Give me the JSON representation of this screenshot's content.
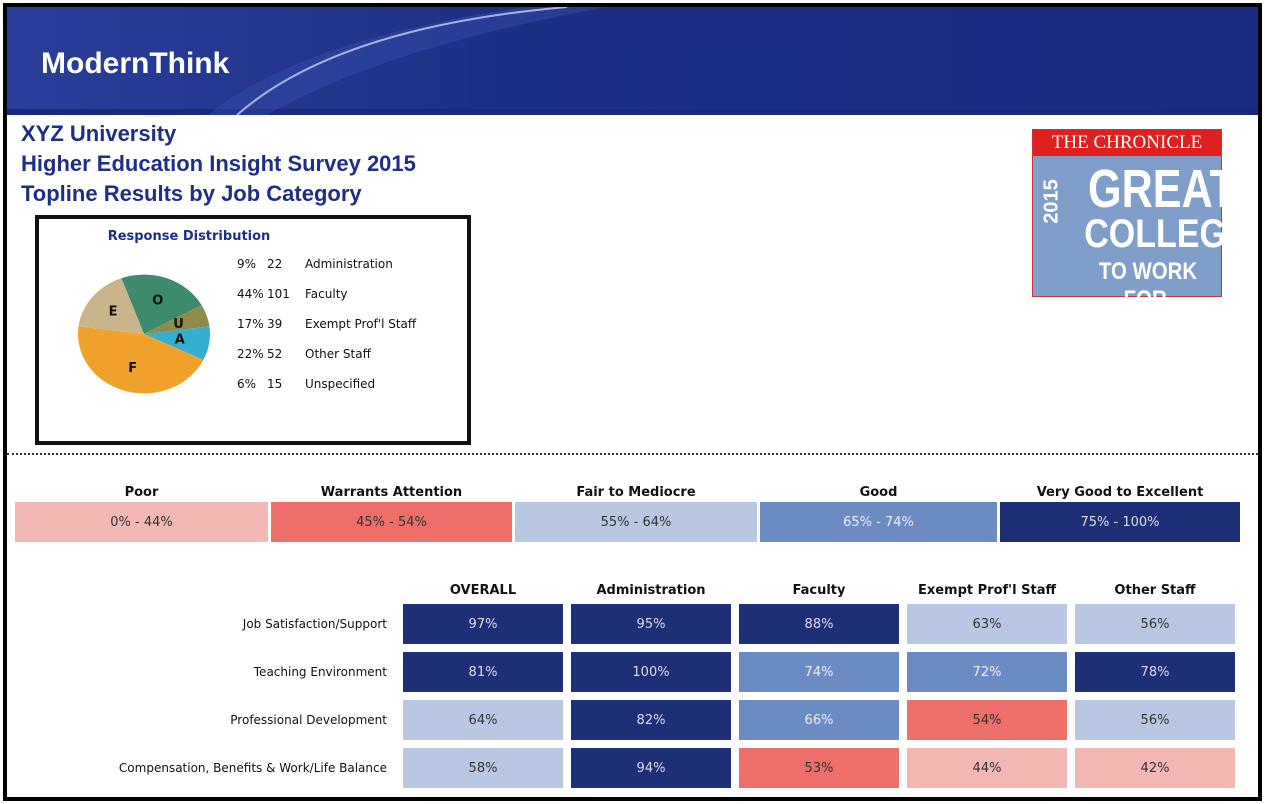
{
  "header": {
    "logo": "ModernThink",
    "title_lines": [
      "XYZ University",
      "Higher Education Insight Survey 2015",
      "Topline Results by Job Category"
    ]
  },
  "badge": {
    "top": "THE CHRONICLE",
    "year": "2015",
    "lines": [
      "GREAT",
      "COLLEGES",
      "TO WORK FOR."
    ]
  },
  "response_distribution": {
    "title": "Response Distribution",
    "labels": [
      "Administration",
      "Faculty",
      "Exempt Prof'l Staff",
      "Other Staff",
      "Unspecified"
    ],
    "letters": [
      "A",
      "F",
      "E",
      "O",
      "U"
    ],
    "values": [
      9,
      44,
      17,
      22,
      6
    ],
    "value_labels": [
      "9%",
      "44%",
      "17%",
      "22%",
      "6%"
    ],
    "counts": [
      22,
      101,
      39,
      52,
      15
    ],
    "colors": [
      "#35aed2",
      "#f0a22c",
      "#c9b48c",
      "#3e8a6c",
      "#8e8c4c"
    ]
  },
  "scale": {
    "bands": [
      {
        "name": "Poor",
        "label": "0% - 44%",
        "range": [
          0,
          44
        ],
        "color": "#f3b8b4",
        "text": "#333"
      },
      {
        "name": "Warrants Attention",
        "label": "45% - 54%",
        "range": [
          45,
          54
        ],
        "color": "#ee6f69",
        "text": "#333"
      },
      {
        "name": "Fair to Mediocre",
        "label": "55% - 64%",
        "range": [
          55,
          64
        ],
        "color": "#b9c7e3",
        "text": "#333"
      },
      {
        "name": "Good",
        "label": "65% - 74%",
        "range": [
          65,
          74
        ],
        "color": "#6b8cc3",
        "text": "#eef"
      },
      {
        "name": "Very Good to Excellent",
        "label": "75% - 100%",
        "range": [
          75,
          100
        ],
        "color": "#1d2f77",
        "text": "#dde"
      }
    ]
  },
  "table": {
    "columns": [
      "OVERALL",
      "Administration",
      "Faculty",
      "Exempt Prof'l Staff",
      "Other Staff"
    ],
    "rows": [
      {
        "label": "Job Satisfaction/Support",
        "values": [
          97,
          95,
          88,
          63,
          56
        ],
        "value_labels": [
          "97%",
          "95%",
          "88%",
          "63%",
          "56%"
        ]
      },
      {
        "label": "Teaching Environment",
        "values": [
          81,
          100,
          74,
          72,
          78
        ],
        "value_labels": [
          "81%",
          "100%",
          "74%",
          "72%",
          "78%"
        ]
      },
      {
        "label": "Professional Development",
        "values": [
          64,
          82,
          66,
          54,
          56
        ],
        "value_labels": [
          "64%",
          "82%",
          "66%",
          "54%",
          "56%"
        ]
      },
      {
        "label": "Compensation, Benefits & Work/Life Balance",
        "values": [
          58,
          94,
          53,
          44,
          42
        ],
        "value_labels": [
          "58%",
          "94%",
          "53%",
          "44%",
          "42%"
        ]
      }
    ]
  }
}
